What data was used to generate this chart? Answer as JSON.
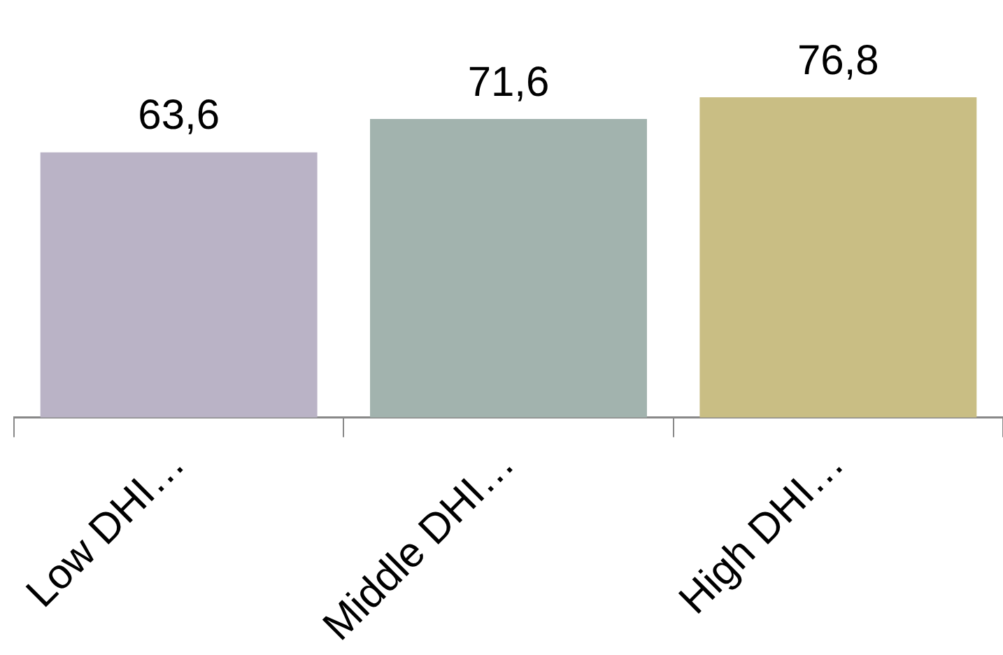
{
  "chart_data": {
    "type": "bar",
    "categories": [
      "Low DHI…",
      "Middle DHI…",
      "High DHI…"
    ],
    "values": [
      63.6,
      71.6,
      76.8
    ],
    "value_labels": [
      "63,6",
      "71,6",
      "76,8"
    ],
    "colors": [
      "#bab3c6",
      "#a2b3ae",
      "#c9be84"
    ],
    "grid": false,
    "legend": false
  }
}
